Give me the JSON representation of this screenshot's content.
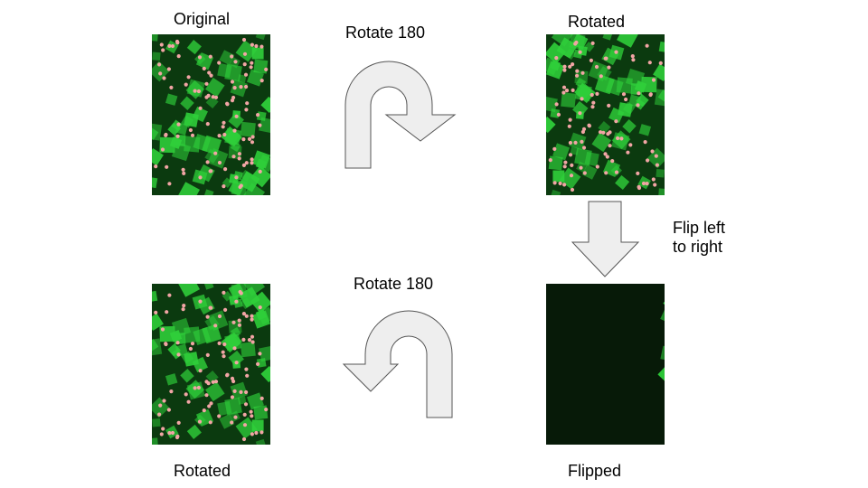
{
  "labels": {
    "original": "Original",
    "rotate_top": "Rotate 180",
    "rotated_top": "Rotated",
    "flip_line1": "Flip left",
    "flip_line2": "to right",
    "rotate_bottom": "Rotate 180",
    "rotated_bottom": "Rotated",
    "flipped": "Flipped"
  },
  "panels": [
    {
      "name": "original",
      "transform": "none"
    },
    {
      "name": "rotated",
      "transform": "rotate-180"
    },
    {
      "name": "flipped",
      "transform": "flip-horizontal"
    },
    {
      "name": "rotated-again",
      "transform": "rotate-180"
    }
  ],
  "colors": {
    "background": "#ffffff",
    "arrow_fill": "#eeeeee",
    "arrow_stroke": "#555555",
    "cell_bright": "#2fcf3a",
    "cell_dim": "#0b3a0f",
    "spot": "#f2a5a5"
  },
  "icons": {
    "rotate_top": "u-turn-arrow-icon",
    "flip": "down-arrow-icon",
    "rotate_bottom": "u-turn-arrow-left-icon"
  }
}
